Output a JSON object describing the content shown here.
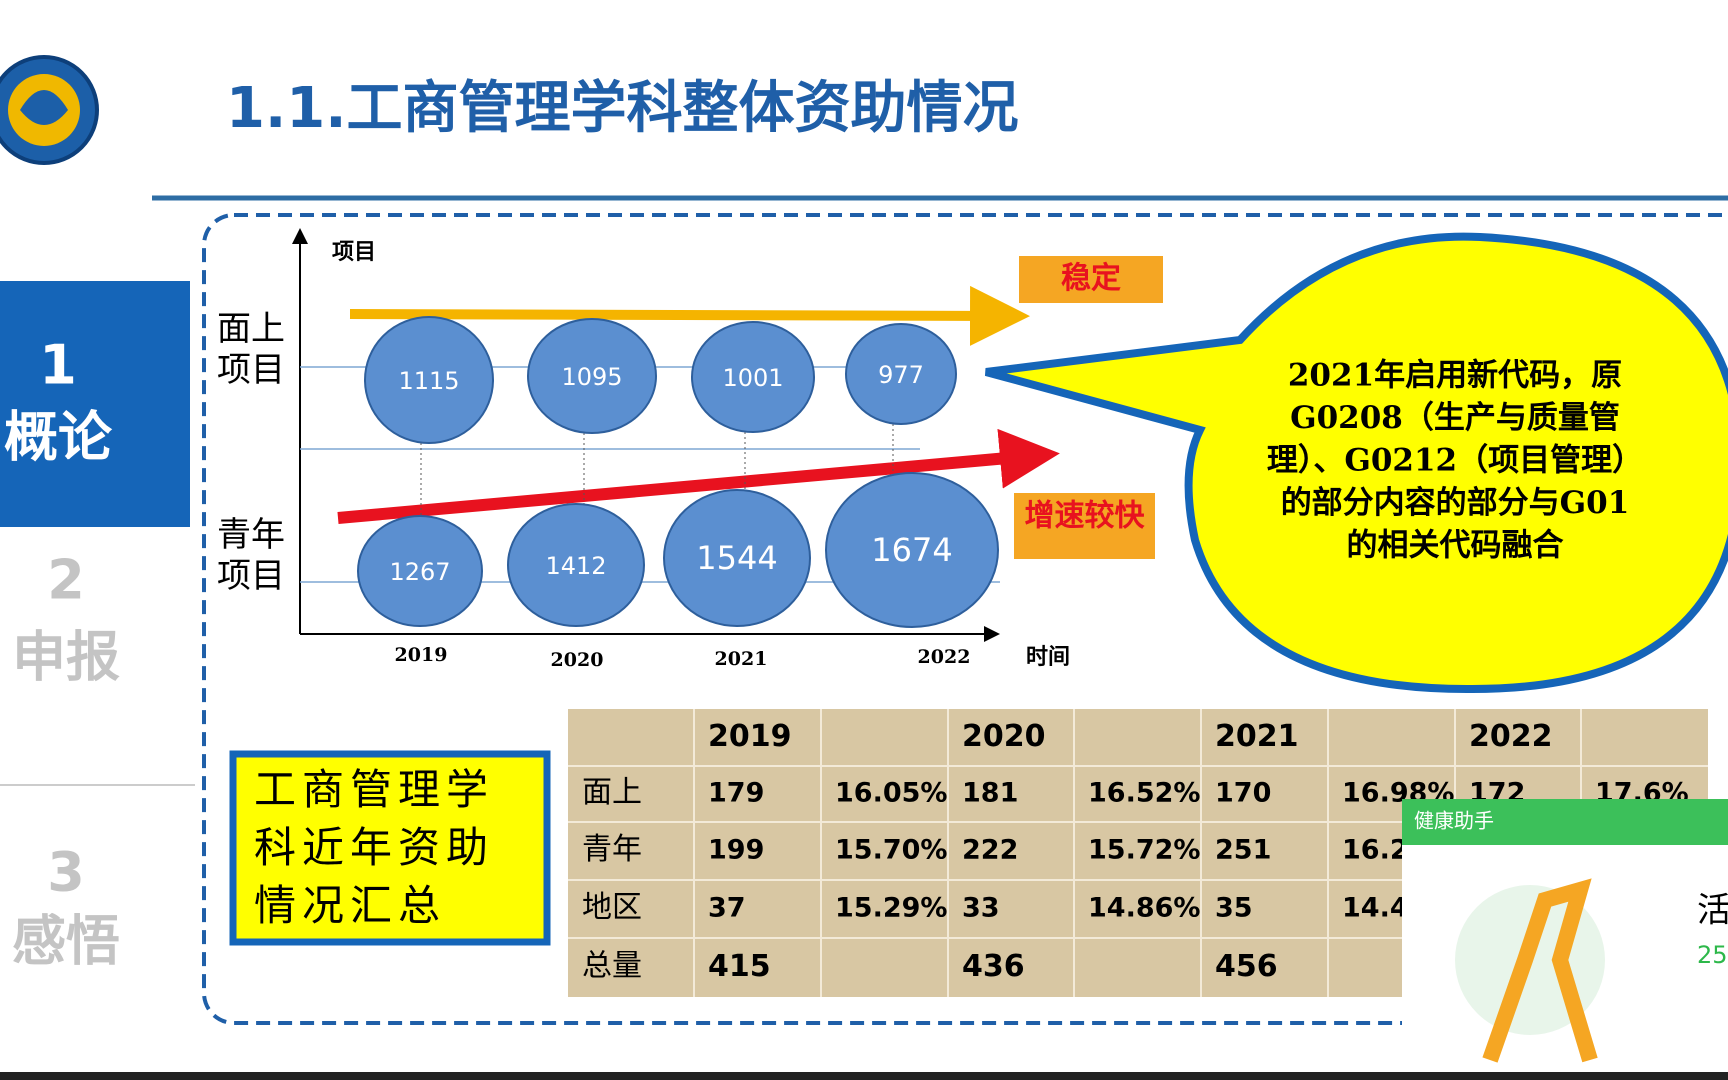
{
  "header": {
    "title": "1.1.工商管理学科整体资助情况"
  },
  "sidebar": [
    {
      "number": "1",
      "label": "概论"
    },
    {
      "number": "2",
      "label": "申报"
    },
    {
      "number": "3",
      "label": "感悟"
    }
  ],
  "diagram": {
    "y_axis_label": "项目",
    "x_axis_label": "时间",
    "rows": [
      {
        "label_lines": [
          "面上",
          "项目"
        ],
        "bubbles": [
          "1115",
          "1095",
          "1001",
          "977"
        ]
      },
      {
        "label_lines": [
          "青年",
          "项目"
        ],
        "bubbles": [
          "1267",
          "1412",
          "1544",
          "1674"
        ]
      }
    ],
    "years": [
      "2019",
      "2020",
      "2021",
      "2022"
    ],
    "tags": [
      "稳定",
      "增速较快"
    ],
    "callout_lines": [
      "2021年启用新代码，原",
      "G0208（生产与质量管",
      "理）、G0212（项目管理）",
      "的部分内容的部分与G01",
      "的相关代码融合"
    ]
  },
  "summary_box": {
    "lines": [
      "工商管理学",
      "科近年资助",
      "情况汇总"
    ]
  },
  "table": {
    "header": [
      "2019",
      "2020",
      "2021",
      "2022"
    ],
    "rows": [
      {
        "label": "面上",
        "cells": [
          "179",
          "16.05%",
          "181",
          "16.52%",
          "170",
          "16.98%",
          "172",
          "17.6%"
        ]
      },
      {
        "label": "青年",
        "cells": [
          "199",
          "15.70%",
          "222",
          "15.72%",
          "251",
          "16.2"
        ]
      },
      {
        "label": "地区",
        "cells": [
          "37",
          "15.29%",
          "33",
          "14.86%",
          "35",
          "14.4"
        ]
      },
      {
        "label": "总量",
        "totals": [
          "415",
          "436",
          "456"
        ]
      }
    ]
  },
  "popup": {
    "title": "健康助手",
    "text": "活",
    "number": "25"
  }
}
